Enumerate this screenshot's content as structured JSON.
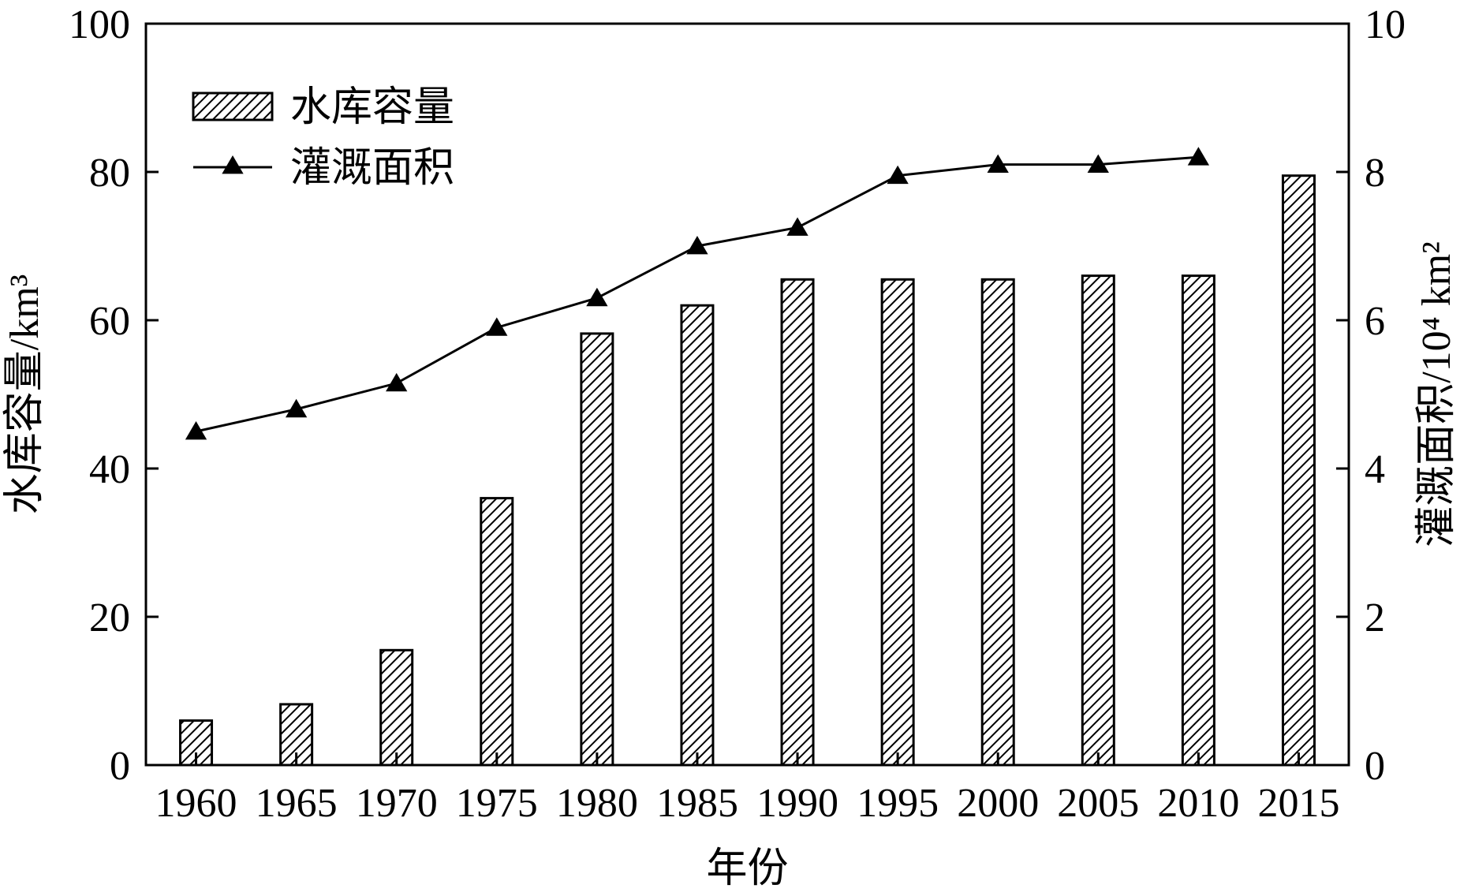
{
  "chart_data": {
    "type": "bar",
    "categories": [
      "1960",
      "1965",
      "1970",
      "1975",
      "1980",
      "1985",
      "1990",
      "1995",
      "2000",
      "2005",
      "2010",
      "2015"
    ],
    "xlabel": "年份",
    "ylabel_left": "水库容量/km³",
    "ylabel_right": "灌溉面积/10⁴ km²",
    "ylim_left": [
      0,
      100
    ],
    "ylim_right": [
      0,
      10
    ],
    "yticks_left": [
      "0",
      "20",
      "40",
      "60",
      "80",
      "100"
    ],
    "yticks_right": [
      "0",
      "2",
      "4",
      "6",
      "8",
      "10"
    ],
    "legend_position": "top-left",
    "series": [
      {
        "name": "水库容量",
        "type": "bar",
        "axis": "left",
        "pattern": "diagonal-hatch",
        "values": [
          6,
          8.2,
          15.5,
          36,
          58.2,
          62,
          65.5,
          65.5,
          65.5,
          66,
          66,
          79.5
        ]
      },
      {
        "name": "灌溉面积",
        "type": "line",
        "axis": "right",
        "marker": "triangle",
        "values": [
          4.5,
          4.8,
          5.15,
          5.9,
          6.3,
          7.0,
          7.25,
          7.95,
          8.1,
          8.1,
          8.2,
          null
        ]
      }
    ],
    "colors": {
      "ink": "#000000",
      "bar_fill": "#ffffff"
    }
  }
}
